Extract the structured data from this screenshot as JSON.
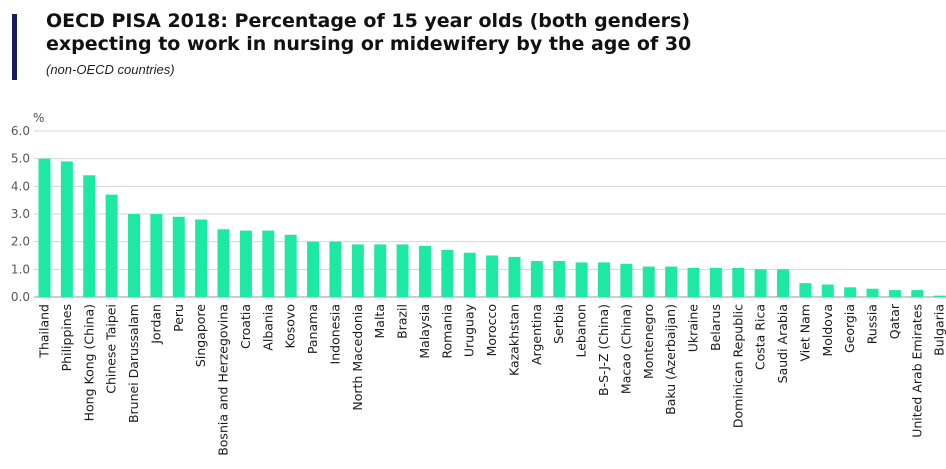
{
  "header": {
    "title_line1": "OECD PISA 2018: Percentage of 15 year olds (both genders)",
    "title_line2": "expecting to work in nursing or midewifery by the age of 30",
    "subtitle": "(non-OECD countries)",
    "accent_color": "#1a1a5e"
  },
  "chart_data": {
    "type": "bar",
    "unit_label": "%",
    "ylim": [
      0,
      6
    ],
    "yticks": [
      "0.0",
      "1.0",
      "2.0",
      "3.0",
      "4.0",
      "5.0",
      "6.0"
    ],
    "grid": true,
    "bar_color": "#1de9a4",
    "categories": [
      "Thailand",
      "Philippines",
      "Hong Kong (China)",
      "Chinese Taipei",
      "Brunei Darussalam",
      "Jordan",
      "Peru",
      "Singapore",
      "Bosnia and Herzegovina",
      "Croatia",
      "Albania",
      "Kosovo",
      "Panama",
      "Indonesia",
      "North Macedonia",
      "Malta",
      "Brazil",
      "Malaysia",
      "Romania",
      "Uruguay",
      "Morocco",
      "Kazakhstan",
      "Argentina",
      "Serbia",
      "Lebanon",
      "B-S-J-Z (China)",
      "Macao (China)",
      "Montenegro",
      "Baku (Azerbaijan)",
      "Ukraine",
      "Belarus",
      "Dominican Republic",
      "Costa Rica",
      "Saudi Arabia",
      "Viet Nam",
      "Moldova",
      "Georgia",
      "Russia",
      "Qatar",
      "United Arab Emirates",
      "Bulgaria"
    ],
    "values": [
      5.0,
      4.9,
      4.4,
      3.7,
      3.0,
      3.0,
      2.9,
      2.8,
      2.45,
      2.4,
      2.4,
      2.25,
      2.0,
      2.0,
      1.9,
      1.9,
      1.9,
      1.85,
      1.7,
      1.6,
      1.5,
      1.45,
      1.3,
      1.3,
      1.25,
      1.25,
      1.2,
      1.1,
      1.1,
      1.05,
      1.05,
      1.05,
      1.0,
      1.0,
      0.5,
      0.45,
      0.35,
      0.3,
      0.25,
      0.25,
      0.05
    ]
  }
}
